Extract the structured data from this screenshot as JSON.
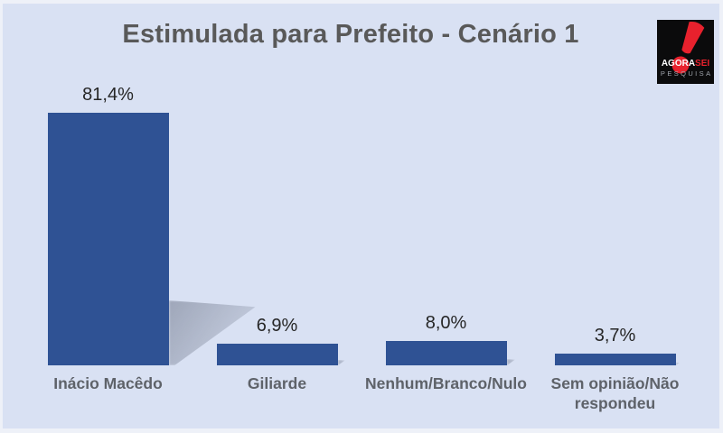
{
  "title": "Estimulada para Prefeito - Cenário 1",
  "logo": {
    "brand_part1": "AGORA",
    "brand_part2": "SEI",
    "subtitle": "PESQUISA",
    "exclamation_color": "#e8212d",
    "box_color": "#0b0b0c"
  },
  "chart_data": {
    "type": "bar",
    "title": "Estimulada para Prefeito - Cenário 1",
    "categories": [
      "Inácio Macêdo",
      "Giliarde",
      "Nenhum/Branco/Nulo",
      "Sem opinião/Não respondeu"
    ],
    "values": [
      81.4,
      6.9,
      8.0,
      3.7
    ],
    "value_labels": [
      "81,4%",
      "6,9%",
      "8,0%",
      "3,7%"
    ],
    "xlabel": "",
    "ylabel": "",
    "ylim": [
      0,
      90
    ],
    "grid": false,
    "legend": false,
    "value_axis_visible": false,
    "bar_color": "#2F5294",
    "value_label_color": "#262626",
    "category_label_color": "#5E6269",
    "background_color": "#D9E1F3",
    "title_color": "#595959",
    "shadow_style": "perspective-right"
  }
}
